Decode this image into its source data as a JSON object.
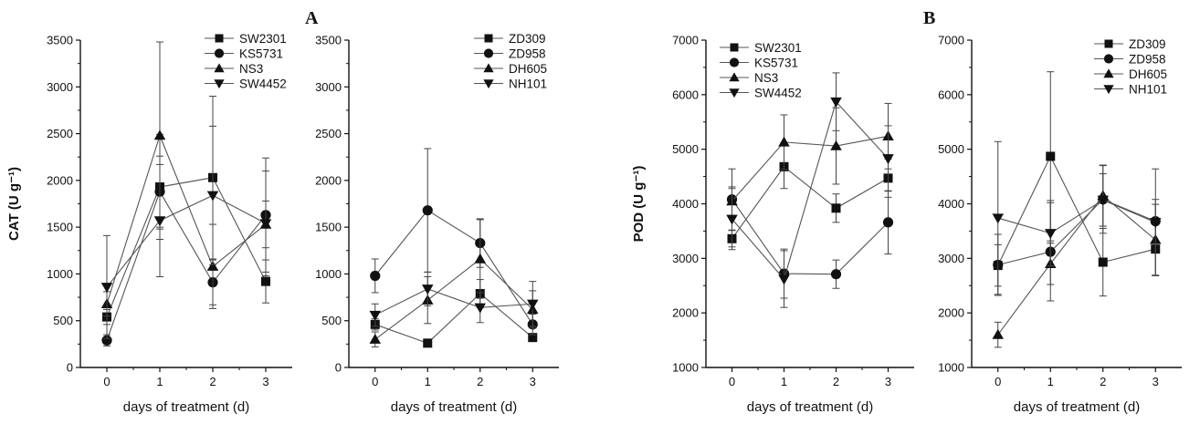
{
  "figure": {
    "label_A": "A",
    "label_B": "B"
  },
  "chart_data": [
    {
      "type": "line",
      "panel": "A-left",
      "ylabel": "CAT (U g⁻¹)",
      "xlabel": "days of treatment (d)",
      "x": [
        0,
        1,
        2,
        3
      ],
      "ylim": [
        0,
        3500
      ],
      "yticks": [
        0,
        500,
        1000,
        1500,
        2000,
        2500,
        3000,
        3500
      ],
      "xticks": [
        "0",
        "1",
        "2",
        "3"
      ],
      "legend_position": "top-right",
      "series": [
        {
          "name": "SW2301",
          "marker": "square",
          "values": [
            540,
            1930,
            2030,
            920
          ],
          "err": [
            80,
            560,
            870,
            230
          ]
        },
        {
          "name": "KS5731",
          "marker": "circle",
          "values": [
            290,
            1880,
            910,
            1630
          ],
          "err": [
            60,
            380,
            240,
            610
          ]
        },
        {
          "name": "NS3",
          "marker": "triangle-up",
          "values": [
            680,
            2480,
            1080,
            1530
          ],
          "err": [
            130,
            1000,
            450,
            250
          ]
        },
        {
          "name": "SW4452",
          "marker": "triangle-down",
          "values": [
            860,
            1570,
            1840,
            1540
          ],
          "err": [
            550,
            600,
            740,
            560
          ]
        }
      ]
    },
    {
      "type": "line",
      "panel": "A-right",
      "ylabel": "",
      "xlabel": "days of treatment (d)",
      "x": [
        0,
        1,
        2,
        3
      ],
      "ylim": [
        0,
        3500
      ],
      "yticks": [
        0,
        500,
        1000,
        1500,
        2000,
        2500,
        3000,
        3500
      ],
      "xticks": [
        "0",
        "1",
        "2",
        "3"
      ],
      "legend_position": "top-right",
      "series": [
        {
          "name": "ZD309",
          "marker": "square",
          "values": [
            460,
            260,
            790,
            320
          ],
          "err": [
            60,
            40,
            150,
            40
          ]
        },
        {
          "name": "ZD958",
          "marker": "circle",
          "values": [
            980,
            1680,
            1330,
            460
          ],
          "err": [
            180,
            660,
            260,
            110
          ]
        },
        {
          "name": "DH605",
          "marker": "triangle-up",
          "values": [
            300,
            720,
            1160,
            620
          ],
          "err": [
            80,
            250,
            420,
            200
          ]
        },
        {
          "name": "NH101",
          "marker": "triangle-down",
          "values": [
            560,
            840,
            640,
            680
          ],
          "err": [
            120,
            180,
            160,
            240
          ]
        }
      ]
    },
    {
      "type": "line",
      "panel": "B-left",
      "ylabel": "POD (U g⁻¹)",
      "xlabel": "days of treatment (d)",
      "x": [
        0,
        1,
        2,
        3
      ],
      "ylim": [
        1000,
        7000
      ],
      "yticks": [
        1000,
        2000,
        3000,
        4000,
        5000,
        6000,
        7000
      ],
      "xticks": [
        "0",
        "1",
        "2",
        "3"
      ],
      "legend_position": "top-left",
      "series": [
        {
          "name": "SW2301",
          "marker": "square",
          "values": [
            3360,
            4680,
            3920,
            4470
          ],
          "err": [
            150,
            400,
            260,
            350
          ]
        },
        {
          "name": "KS5731",
          "marker": "circle",
          "values": [
            4080,
            2720,
            2710,
            3660
          ],
          "err": [
            560,
            450,
            260,
            580
          ]
        },
        {
          "name": "NS3",
          "marker": "triangle-up",
          "values": [
            4050,
            5130,
            5060,
            5240
          ],
          "err": [
            260,
            500,
            700,
            600
          ]
        },
        {
          "name": "SW4452",
          "marker": "triangle-down",
          "values": [
            3720,
            2620,
            5870,
            4830
          ],
          "err": [
            560,
            520,
            530,
            600
          ]
        }
      ]
    },
    {
      "type": "line",
      "panel": "B-right",
      "ylabel": "",
      "xlabel": "days of treatment (d)",
      "x": [
        0,
        1,
        2,
        3
      ],
      "ylim": [
        1000,
        7000
      ],
      "yticks": [
        1000,
        2000,
        3000,
        4000,
        5000,
        6000,
        7000
      ],
      "xticks": [
        "0",
        "1",
        "2",
        "3"
      ],
      "legend_position": "top-right",
      "series": [
        {
          "name": "ZD309",
          "marker": "square",
          "values": [
            2870,
            4870,
            2930,
            3170
          ],
          "err": [
            380,
            1550,
            620,
            480
          ]
        },
        {
          "name": "ZD958",
          "marker": "circle",
          "values": [
            2880,
            3120,
            4080,
            3680
          ],
          "err": [
            560,
            900,
            620,
            400
          ]
        },
        {
          "name": "DH605",
          "marker": "triangle-up",
          "values": [
            1600,
            2900,
            4150,
            3340
          ],
          "err": [
            230,
            380,
            560,
            650
          ]
        },
        {
          "name": "NH101",
          "marker": "triangle-down",
          "values": [
            3740,
            3460,
            4070,
            3660
          ],
          "err": [
            1400,
            600,
            480,
            980
          ]
        }
      ]
    }
  ]
}
